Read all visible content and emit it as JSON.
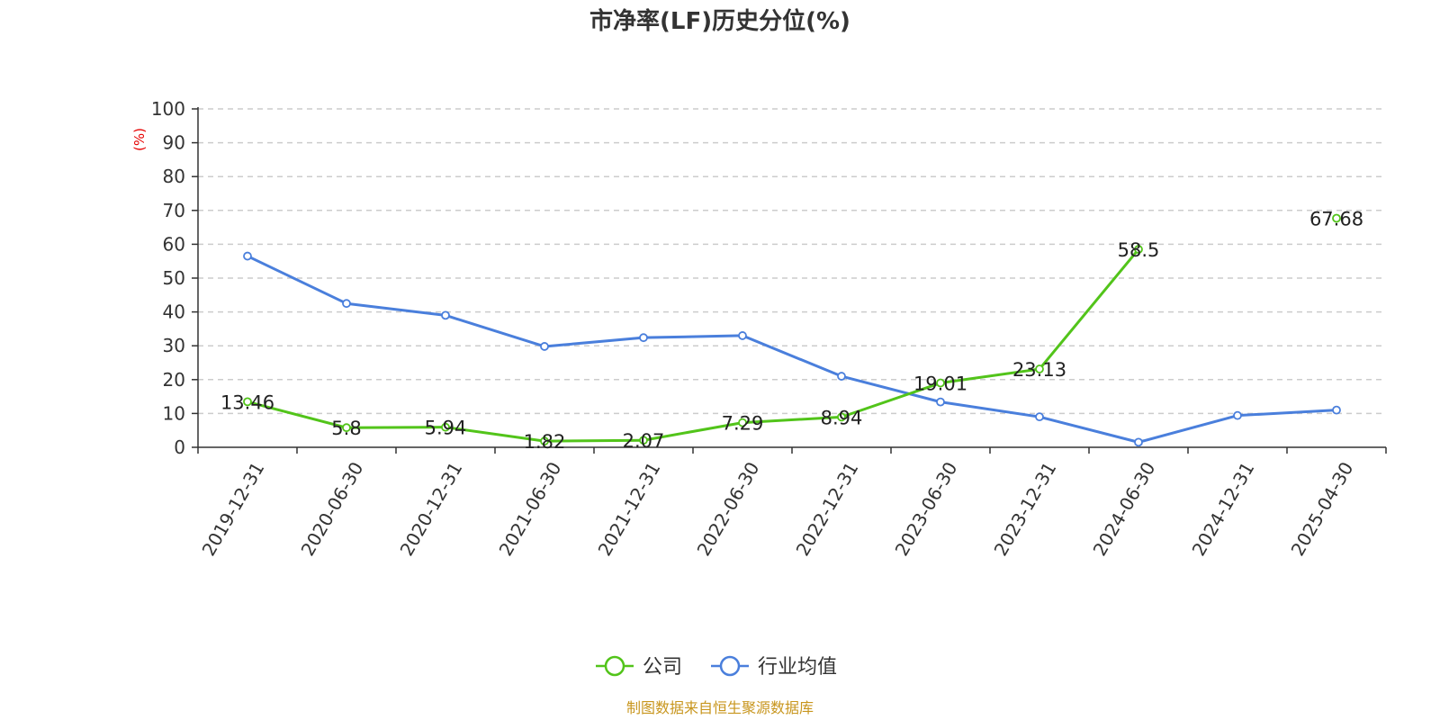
{
  "chart_data": {
    "type": "line",
    "title": "市净率(LF)历史分位(%)",
    "y_unit": "(%)",
    "categories": [
      "2019-12-31",
      "2020-06-30",
      "2020-12-31",
      "2021-06-30",
      "2021-12-31",
      "2022-06-30",
      "2022-12-31",
      "2023-06-30",
      "2023-12-31",
      "2024-06-30",
      "2024-12-31",
      "2025-04-30"
    ],
    "ylim": [
      0,
      100
    ],
    "y_ticks": [
      0,
      10,
      20,
      30,
      40,
      50,
      60,
      70,
      80,
      90,
      100
    ],
    "grid": true,
    "legend_position": "bottom-center",
    "series": [
      {
        "name": "公司",
        "color": "#52c41a",
        "values": [
          13.46,
          5.8,
          5.94,
          1.82,
          2.07,
          7.29,
          8.94,
          19.01,
          23.13,
          58.5,
          null,
          67.68
        ],
        "labels": [
          "13.46",
          "5.8",
          "5.94",
          "1.82",
          "2.07",
          "7.29",
          "8.94",
          "19.01",
          "23.13",
          "58.5",
          "",
          "67.68"
        ],
        "show_labels": true
      },
      {
        "name": "行业均值",
        "color": "#4a7fdc",
        "values": [
          56.5,
          42.5,
          39,
          29.8,
          32.4,
          33,
          21,
          13.4,
          9,
          1.5,
          9.4,
          11
        ],
        "show_labels": false
      }
    ],
    "source": "制图数据来自恒生聚源数据库",
    "colors": {
      "unit": "#e60000",
      "source": "#c8961e",
      "grid": "#cccccc",
      "axis": "#333333"
    }
  }
}
